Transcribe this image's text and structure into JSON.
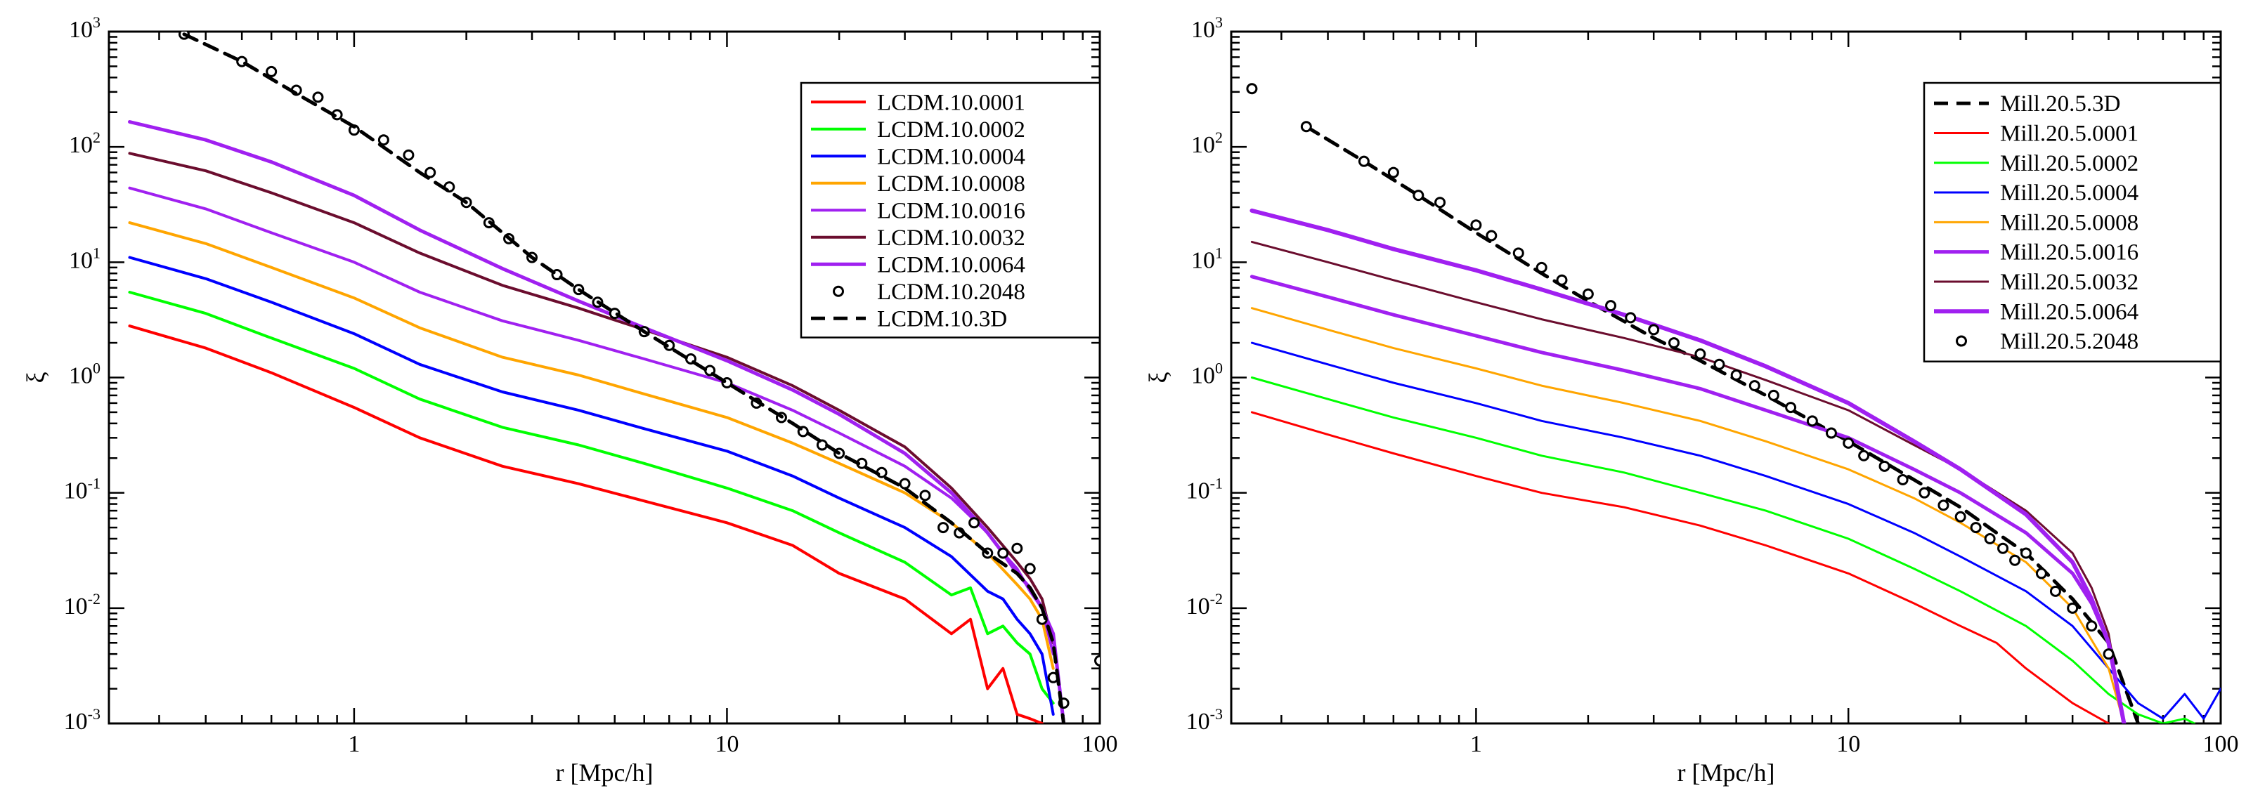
{
  "chart_data": [
    {
      "type": "line",
      "title": "",
      "xlabel": "r [Mpc/h]",
      "ylabel": "ξ",
      "xscale": "log",
      "yscale": "log",
      "xlim": [
        0.22,
        100
      ],
      "ylim": [
        0.001,
        1000
      ],
      "x_ticks": [
        {
          "v": 1,
          "label": "1"
        },
        {
          "v": 10,
          "label": "10"
        },
        {
          "v": 100,
          "label": "100"
        }
      ],
      "y_ticks": [
        {
          "v": 0.001,
          "base": "10",
          "exp": "-3"
        },
        {
          "v": 0.01,
          "base": "10",
          "exp": "-2"
        },
        {
          "v": 0.1,
          "base": "10",
          "exp": "-1"
        },
        {
          "v": 1,
          "base": "10",
          "exp": "0"
        },
        {
          "v": 10,
          "base": "10",
          "exp": "1"
        },
        {
          "v": 100,
          "base": "10",
          "exp": "2"
        },
        {
          "v": 1000,
          "base": "10",
          "exp": "3"
        }
      ],
      "legend_position": "top-right",
      "legend_order": [
        "LCDM.10.0001",
        "LCDM.10.0002",
        "LCDM.10.0004",
        "LCDM.10.0008",
        "LCDM.10.0016",
        "LCDM.10.0032",
        "LCDM.10.0064",
        "LCDM.10.2048",
        "LCDM.10.3D"
      ],
      "series": [
        {
          "name": "LCDM.10.0001",
          "color": "#ff0000",
          "style": "solid",
          "width": 4,
          "x": [
            0.25,
            0.4,
            0.6,
            1,
            1.5,
            2.5,
            4,
            6,
            10,
            15,
            20,
            30,
            40,
            45,
            50,
            55,
            60,
            65,
            70
          ],
          "y": [
            2.8,
            1.8,
            1.1,
            0.55,
            0.3,
            0.17,
            0.12,
            0.085,
            0.055,
            0.035,
            0.02,
            0.012,
            0.006,
            0.008,
            0.002,
            0.003,
            0.0012,
            0.0011,
            0.001
          ]
        },
        {
          "name": "LCDM.10.0002",
          "color": "#00ff00",
          "style": "solid",
          "width": 4,
          "x": [
            0.25,
            0.4,
            0.6,
            1,
            1.5,
            2.5,
            4,
            6,
            10,
            15,
            20,
            30,
            40,
            45,
            50,
            55,
            60,
            65,
            70,
            75
          ],
          "y": [
            5.5,
            3.6,
            2.2,
            1.2,
            0.65,
            0.37,
            0.26,
            0.18,
            0.11,
            0.07,
            0.045,
            0.025,
            0.013,
            0.015,
            0.006,
            0.007,
            0.005,
            0.004,
            0.002,
            0.0015
          ]
        },
        {
          "name": "LCDM.10.0004",
          "color": "#0000ff",
          "style": "solid",
          "width": 4,
          "x": [
            0.25,
            0.4,
            0.6,
            1,
            1.5,
            2.5,
            4,
            6,
            10,
            15,
            20,
            30,
            40,
            50,
            55,
            60,
            65,
            70,
            75
          ],
          "y": [
            11,
            7.2,
            4.5,
            2.4,
            1.3,
            0.75,
            0.52,
            0.36,
            0.23,
            0.14,
            0.09,
            0.05,
            0.028,
            0.014,
            0.012,
            0.008,
            0.006,
            0.004,
            0.0012
          ]
        },
        {
          "name": "LCDM.10.0008",
          "color": "#ffa500",
          "style": "solid",
          "width": 4,
          "x": [
            0.25,
            0.4,
            0.6,
            1,
            1.5,
            2.5,
            4,
            6,
            10,
            15,
            20,
            30,
            40,
            50,
            60,
            65,
            70,
            75
          ],
          "y": [
            22,
            14.5,
            9,
            4.9,
            2.7,
            1.5,
            1.05,
            0.72,
            0.45,
            0.27,
            0.18,
            0.1,
            0.055,
            0.03,
            0.016,
            0.012,
            0.008,
            0.003
          ]
        },
        {
          "name": "LCDM.10.0016",
          "color": "#a020f0",
          "style": "solid",
          "width": 4,
          "x": [
            0.25,
            0.4,
            0.6,
            1,
            1.5,
            2.5,
            4,
            6,
            10,
            15,
            20,
            30,
            40,
            50,
            55,
            60,
            65,
            70,
            75
          ],
          "y": [
            44,
            29,
            18,
            10,
            5.5,
            3.1,
            2.1,
            1.45,
            0.9,
            0.52,
            0.33,
            0.17,
            0.09,
            0.045,
            0.03,
            0.022,
            0.014,
            0.01,
            0.004
          ]
        },
        {
          "name": "LCDM.10.0032",
          "color": "#6b0d2e",
          "style": "solid",
          "width": 4,
          "x": [
            0.25,
            0.4,
            0.6,
            1,
            1.5,
            2.5,
            4,
            6,
            10,
            15,
            20,
            30,
            40,
            50,
            60,
            65,
            70,
            75
          ],
          "y": [
            88,
            62,
            40,
            22,
            12,
            6.3,
            4,
            2.6,
            1.5,
            0.85,
            0.52,
            0.25,
            0.11,
            0.05,
            0.025,
            0.018,
            0.012,
            0.005
          ]
        },
        {
          "name": "LCDM.10.0064",
          "color": "#a020f0",
          "style": "solid",
          "width": 5,
          "x": [
            0.25,
            0.4,
            0.6,
            1,
            1.5,
            2.5,
            4,
            6,
            10,
            15,
            20,
            30,
            40,
            50,
            55,
            60,
            65,
            70,
            75,
            80
          ],
          "y": [
            165,
            115,
            74,
            38,
            19,
            8.8,
            4.6,
            2.7,
            1.4,
            0.78,
            0.48,
            0.22,
            0.1,
            0.045,
            0.03,
            0.02,
            0.015,
            0.01,
            0.006,
            0.001
          ]
        },
        {
          "name": "LCDM.10.2048",
          "color": "#000000",
          "style": "circles",
          "x": [
            0.35,
            0.5,
            0.6,
            0.7,
            0.8,
            0.9,
            1,
            1.2,
            1.4,
            1.6,
            1.8,
            2,
            2.3,
            2.6,
            3,
            3.5,
            4,
            4.5,
            5,
            6,
            7,
            8,
            9,
            10,
            12,
            14,
            16,
            18,
            20,
            23,
            26,
            30,
            34,
            38,
            42,
            46,
            50,
            55,
            60,
            65,
            70,
            75,
            80,
            100
          ],
          "y": [
            950,
            550,
            450,
            310,
            270,
            190,
            140,
            115,
            85,
            60,
            45,
            33,
            22,
            16,
            11,
            7.8,
            5.8,
            4.5,
            3.6,
            2.5,
            1.9,
            1.45,
            1.15,
            0.9,
            0.6,
            0.45,
            0.34,
            0.26,
            0.22,
            0.18,
            0.15,
            0.12,
            0.095,
            0.05,
            0.045,
            0.055,
            0.03,
            0.03,
            0.033,
            0.022,
            0.008,
            0.0025,
            0.0015,
            0.0035
          ]
        },
        {
          "name": "LCDM.10.3D",
          "color": "#000000",
          "style": "dashed",
          "width": 5,
          "x": [
            0.35,
            0.5,
            0.7,
            1,
            1.5,
            2,
            3,
            4,
            6,
            10,
            15,
            20,
            30,
            40,
            50,
            60,
            65,
            70,
            75,
            80
          ],
          "y": [
            950,
            550,
            290,
            150,
            60,
            33,
            11,
            5.8,
            2.5,
            0.9,
            0.4,
            0.22,
            0.11,
            0.055,
            0.03,
            0.02,
            0.015,
            0.01,
            0.005,
            0.001
          ]
        }
      ]
    },
    {
      "type": "line",
      "title": "",
      "xlabel": "r [Mpc/h]",
      "ylabel": "ξ",
      "xscale": "log",
      "yscale": "log",
      "xlim": [
        0.22,
        100
      ],
      "ylim": [
        0.001,
        1000
      ],
      "x_ticks": [
        {
          "v": 1,
          "label": "1"
        },
        {
          "v": 10,
          "label": "10"
        },
        {
          "v": 100,
          "label": "100"
        }
      ],
      "y_ticks": [
        {
          "v": 0.001,
          "base": "10",
          "exp": "-3"
        },
        {
          "v": 0.01,
          "base": "10",
          "exp": "-2"
        },
        {
          "v": 0.1,
          "base": "10",
          "exp": "-1"
        },
        {
          "v": 1,
          "base": "10",
          "exp": "0"
        },
        {
          "v": 10,
          "base": "10",
          "exp": "1"
        },
        {
          "v": 100,
          "base": "10",
          "exp": "2"
        },
        {
          "v": 1000,
          "base": "10",
          "exp": "3"
        }
      ],
      "legend_position": "top-right",
      "legend_order": [
        "Mill.20.5.3D",
        "Mill.20.5.0001",
        "Mill.20.5.0002",
        "Mill.20.5.0004",
        "Mill.20.5.0008",
        "Mill.20.5.0016",
        "Mill.20.5.0032",
        "Mill.20.5.0064",
        "Mill.20.5.2048"
      ],
      "series": [
        {
          "name": "Mill.20.5.3D",
          "color": "#000000",
          "style": "dashed",
          "width": 5,
          "x": [
            0.35,
            0.5,
            0.7,
            1,
            1.5,
            2,
            3,
            4,
            6,
            10,
            15,
            20,
            25,
            30,
            40,
            50,
            60
          ],
          "y": [
            150,
            75,
            38,
            18,
            8,
            4.6,
            2.2,
            1.4,
            0.7,
            0.28,
            0.13,
            0.075,
            0.045,
            0.03,
            0.012,
            0.005,
            0.001
          ]
        },
        {
          "name": "Mill.20.5.0001",
          "color": "#ff0000",
          "style": "solid",
          "width": 3,
          "x": [
            0.25,
            0.4,
            0.6,
            1,
            1.5,
            2.5,
            4,
            6,
            10,
            15,
            20,
            25,
            30,
            40,
            50
          ],
          "y": [
            0.5,
            0.32,
            0.22,
            0.14,
            0.1,
            0.075,
            0.052,
            0.035,
            0.02,
            0.011,
            0.007,
            0.005,
            0.003,
            0.0015,
            0.001
          ]
        },
        {
          "name": "Mill.20.5.0002",
          "color": "#00ff00",
          "style": "solid",
          "width": 3,
          "x": [
            0.25,
            0.4,
            0.6,
            1,
            1.5,
            2.5,
            4,
            6,
            10,
            15,
            20,
            30,
            40,
            50,
            60,
            70,
            80,
            85
          ],
          "y": [
            1,
            0.65,
            0.45,
            0.3,
            0.21,
            0.15,
            0.1,
            0.07,
            0.04,
            0.022,
            0.014,
            0.007,
            0.0035,
            0.0018,
            0.0012,
            0.001,
            0.0011,
            0.001
          ]
        },
        {
          "name": "Mill.20.5.0004",
          "color": "#0000ff",
          "style": "solid",
          "width": 3,
          "x": [
            0.25,
            0.4,
            0.6,
            1,
            1.5,
            2.5,
            4,
            6,
            10,
            15,
            20,
            30,
            40,
            50,
            60,
            70,
            80,
            90,
            100
          ],
          "y": [
            2,
            1.3,
            0.9,
            0.6,
            0.42,
            0.3,
            0.21,
            0.14,
            0.08,
            0.045,
            0.028,
            0.014,
            0.007,
            0.003,
            0.0015,
            0.0011,
            0.0018,
            0.0011,
            0.002
          ]
        },
        {
          "name": "Mill.20.5.0008",
          "color": "#ffa500",
          "style": "solid",
          "width": 3,
          "x": [
            0.25,
            0.4,
            0.6,
            1,
            1.5,
            2.5,
            4,
            6,
            10,
            15,
            20,
            30,
            40,
            50,
            55
          ],
          "y": [
            4,
            2.6,
            1.8,
            1.2,
            0.85,
            0.6,
            0.42,
            0.28,
            0.16,
            0.09,
            0.055,
            0.025,
            0.01,
            0.003,
            0.001
          ]
        },
        {
          "name": "Mill.20.5.0016",
          "color": "#a020f0",
          "style": "solid",
          "width": 5,
          "x": [
            0.25,
            0.4,
            0.6,
            1,
            1.5,
            2.5,
            4,
            6,
            10,
            15,
            20,
            30,
            40,
            45,
            50,
            55
          ],
          "y": [
            7.5,
            5,
            3.5,
            2.3,
            1.65,
            1.15,
            0.8,
            0.52,
            0.3,
            0.16,
            0.1,
            0.045,
            0.02,
            0.011,
            0.005,
            0.001
          ]
        },
        {
          "name": "Mill.20.5.0032",
          "color": "#6b0d2e",
          "style": "solid",
          "width": 3,
          "x": [
            0.25,
            0.4,
            0.6,
            1,
            1.5,
            2.5,
            4,
            6,
            10,
            15,
            20,
            30,
            40,
            45,
            50,
            55
          ],
          "y": [
            15,
            10,
            7,
            4.5,
            3.2,
            2.2,
            1.5,
            0.95,
            0.52,
            0.26,
            0.16,
            0.07,
            0.03,
            0.015,
            0.006,
            0.001
          ]
        },
        {
          "name": "Mill.20.5.0064",
          "color": "#a020f0",
          "style": "solid",
          "width": 6,
          "x": [
            0.25,
            0.4,
            0.6,
            1,
            1.5,
            2.5,
            4,
            6,
            10,
            15,
            20,
            30,
            40,
            45,
            50,
            55
          ],
          "y": [
            28,
            19,
            13,
            8.5,
            5.8,
            3.5,
            2.1,
            1.25,
            0.6,
            0.28,
            0.16,
            0.065,
            0.025,
            0.012,
            0.005,
            0.001
          ]
        },
        {
          "name": "Mill.20.5.2048",
          "color": "#000000",
          "style": "circles",
          "x": [
            0.25,
            0.35,
            0.5,
            0.6,
            0.7,
            0.8,
            1,
            1.1,
            1.3,
            1.5,
            1.7,
            2,
            2.3,
            2.6,
            3,
            3.4,
            4,
            4.5,
            5,
            5.6,
            6.3,
            7,
            8,
            9,
            10,
            11,
            12.5,
            14,
            16,
            18,
            20,
            22,
            24,
            26,
            28,
            30,
            33,
            36,
            40,
            45,
            50
          ],
          "y": [
            320,
            150,
            75,
            60,
            38,
            33,
            21,
            17,
            12,
            9,
            7,
            5.3,
            4.2,
            3.3,
            2.6,
            2,
            1.6,
            1.3,
            1.05,
            0.85,
            0.7,
            0.55,
            0.42,
            0.33,
            0.27,
            0.21,
            0.17,
            0.13,
            0.1,
            0.078,
            0.062,
            0.05,
            0.04,
            0.033,
            0.026,
            0.03,
            0.02,
            0.014,
            0.01,
            0.007,
            0.004
          ]
        }
      ]
    }
  ]
}
